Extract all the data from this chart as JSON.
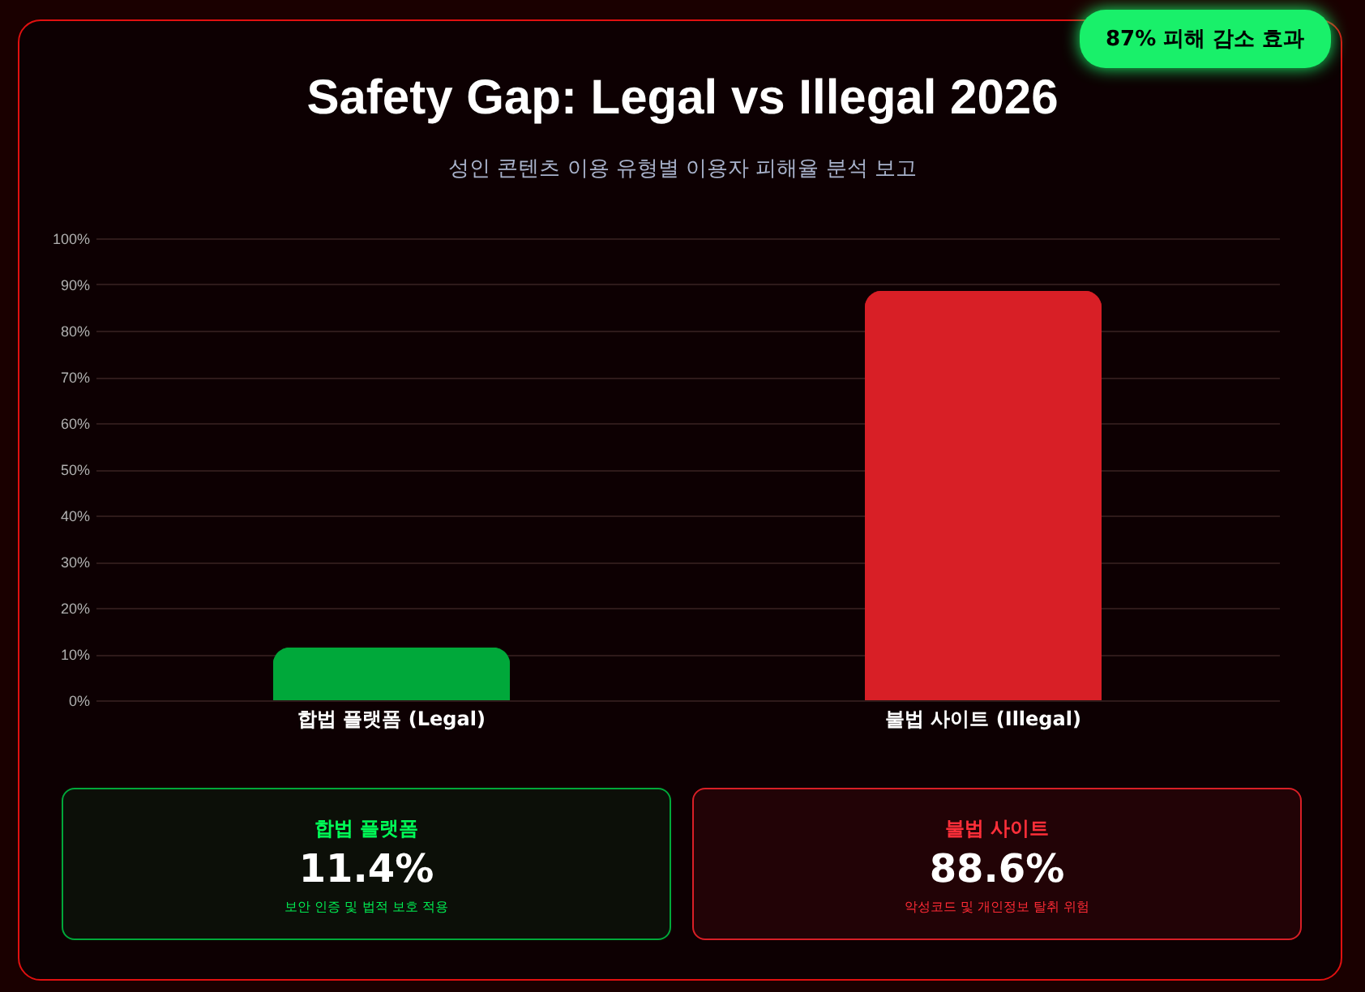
{
  "chart_data": {
    "type": "bar",
    "title": "Safety Gap: Legal vs Illegal 2026",
    "subtitle": "성인 콘텐츠 이용 유형별 이용자 피해율 분석 보고",
    "categories": [
      "합법 플랫폼 (Legal)",
      "불법 사이트 (Illegal)"
    ],
    "values": [
      11.4,
      88.6
    ],
    "colors": [
      "#00a83a",
      "#d81f26"
    ],
    "ylim": [
      0,
      100
    ],
    "yticks": [
      {
        "value": 0,
        "label": "0%"
      },
      {
        "value": 10,
        "label": "10%"
      },
      {
        "value": 20,
        "label": "20%"
      },
      {
        "value": 30,
        "label": "30%"
      },
      {
        "value": 40,
        "label": "40%"
      },
      {
        "value": 50,
        "label": "50%"
      },
      {
        "value": 60,
        "label": "60%"
      },
      {
        "value": 70,
        "label": "70%"
      },
      {
        "value": 80,
        "label": "80%"
      },
      {
        "value": 90,
        "label": "90%"
      },
      {
        "value": 100,
        "label": "100%"
      }
    ],
    "grid": "y",
    "annotations": [
      "87% 피해 감소 효과",
      "합법 플랫폼",
      "11.4%",
      "보안 인증 및 법적 보호 적용",
      "불법 사이트",
      "88.6%",
      "악성코드 및 개인정보 탈취 위험"
    ]
  }
}
